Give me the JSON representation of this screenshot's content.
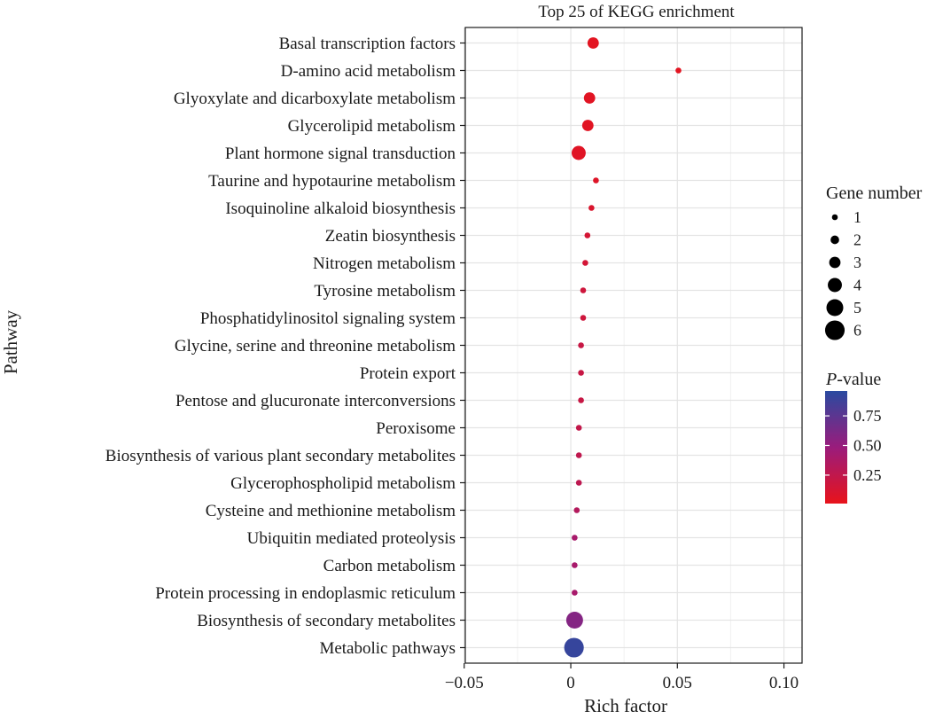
{
  "chart_data": {
    "type": "scatter",
    "title": "Top 25 of KEGG enrichment",
    "xlabel": "Rich factor",
    "ylabel": "Pathway",
    "xlim": [
      -0.0495,
      0.1085
    ],
    "xticks": [
      -0.05,
      0,
      0.05,
      0.1
    ],
    "xtick_labels": [
      "−0.05",
      "0",
      "0.05",
      "0.10"
    ],
    "grid": true,
    "categories": [
      "Basal transcription factors",
      "D-amino acid metabolism",
      "Glyoxylate and dicarboxylate metabolism",
      "Glycerolipid metabolism",
      "Plant hormone signal transduction",
      "Taurine and hypotaurine metabolism",
      "Isoquinoline alkaloid biosynthesis",
      "Zeatin biosynthesis",
      "Nitrogen metabolism",
      "Tyrosine metabolism",
      "Phosphatidylinositol signaling system",
      "Glycine, serine and threonine metabolism",
      "Protein export",
      "Pentose and glucuronate interconversions",
      "Peroxisome",
      "Biosynthesis of various plant secondary metabolites",
      "Glycerophospholipid metabolism",
      "Cysteine and methionine metabolism",
      "Ubiquitin mediated proteolysis",
      "Carbon metabolism",
      "Protein processing in endoplasmic reticulum",
      "Biosynthesis of secondary metabolites",
      "Metabolic pathways"
    ],
    "rich_factor": [
      0.0105,
      0.0505,
      0.0088,
      0.008,
      0.0037,
      0.0118,
      0.0097,
      0.0078,
      0.0068,
      0.0058,
      0.0058,
      0.0048,
      0.0048,
      0.0048,
      0.0038,
      0.0038,
      0.0038,
      0.0028,
      0.0018,
      0.0018,
      0.0018,
      0.0018,
      0.0015
    ],
    "gene_number": [
      3,
      1,
      3,
      3,
      4,
      1,
      1,
      1,
      1,
      1,
      1,
      1,
      1,
      1,
      1,
      1,
      1,
      1,
      1,
      1,
      1,
      5,
      6
    ],
    "p_value": [
      0.04,
      0.04,
      0.05,
      0.05,
      0.06,
      0.07,
      0.1,
      0.13,
      0.14,
      0.17,
      0.17,
      0.21,
      0.21,
      0.21,
      0.24,
      0.26,
      0.27,
      0.33,
      0.4,
      0.4,
      0.4,
      0.58,
      0.91
    ],
    "legend": {
      "size_title": "Gene number",
      "size_levels": [
        1,
        2,
        3,
        4,
        5,
        6
      ],
      "size_labels": [
        "1",
        "2",
        "3",
        "4",
        "5",
        "6"
      ],
      "color_title_italic": "P",
      "color_title_rest": "-value",
      "color_ticks": [
        0.25,
        0.5,
        0.75
      ],
      "color_tick_labels": [
        "0.25",
        "0.50",
        "0.75"
      ],
      "color_range": [
        0.01,
        0.96
      ],
      "color_low": "#e8131b",
      "color_mid": "#9a1c7c",
      "color_high": "#2a4aa0",
      "placement": "right"
    }
  }
}
